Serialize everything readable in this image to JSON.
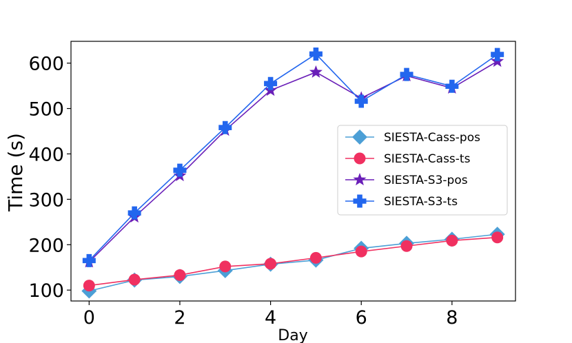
{
  "chart_data": {
    "type": "line",
    "title": "",
    "xlabel": "Day",
    "ylabel": "Time (s)",
    "xlim": [
      -0.4,
      9.4
    ],
    "ylim": [
      76,
      648
    ],
    "xticks": [
      0,
      2,
      4,
      6,
      8
    ],
    "yticks": [
      100,
      200,
      300,
      400,
      500,
      600
    ],
    "x": [
      0,
      1,
      2,
      3,
      4,
      5,
      6,
      7,
      8,
      9
    ],
    "legend_position": "center-right",
    "series": [
      {
        "name": "SIESTA-Cass-pos",
        "color": "#4c9fd6",
        "marker": "diamond",
        "values": [
          98,
          122,
          130,
          143,
          157,
          166,
          192,
          203,
          212,
          223
        ]
      },
      {
        "name": "SIESTA-Cass-ts",
        "color": "#f03060",
        "marker": "circle",
        "values": [
          110,
          123,
          133,
          152,
          158,
          171,
          185,
          197,
          209,
          216
        ]
      },
      {
        "name": "SIESTA-S3-pos",
        "color": "#6a1fb8",
        "marker": "star",
        "values": [
          162,
          261,
          352,
          452,
          540,
          580,
          523,
          572,
          545,
          604
        ]
      },
      {
        "name": "SIESTA-S3-ts",
        "color": "#2266ee",
        "marker": "plus",
        "values": [
          165,
          270,
          364,
          458,
          555,
          620,
          516,
          575,
          549,
          619
        ]
      }
    ]
  }
}
